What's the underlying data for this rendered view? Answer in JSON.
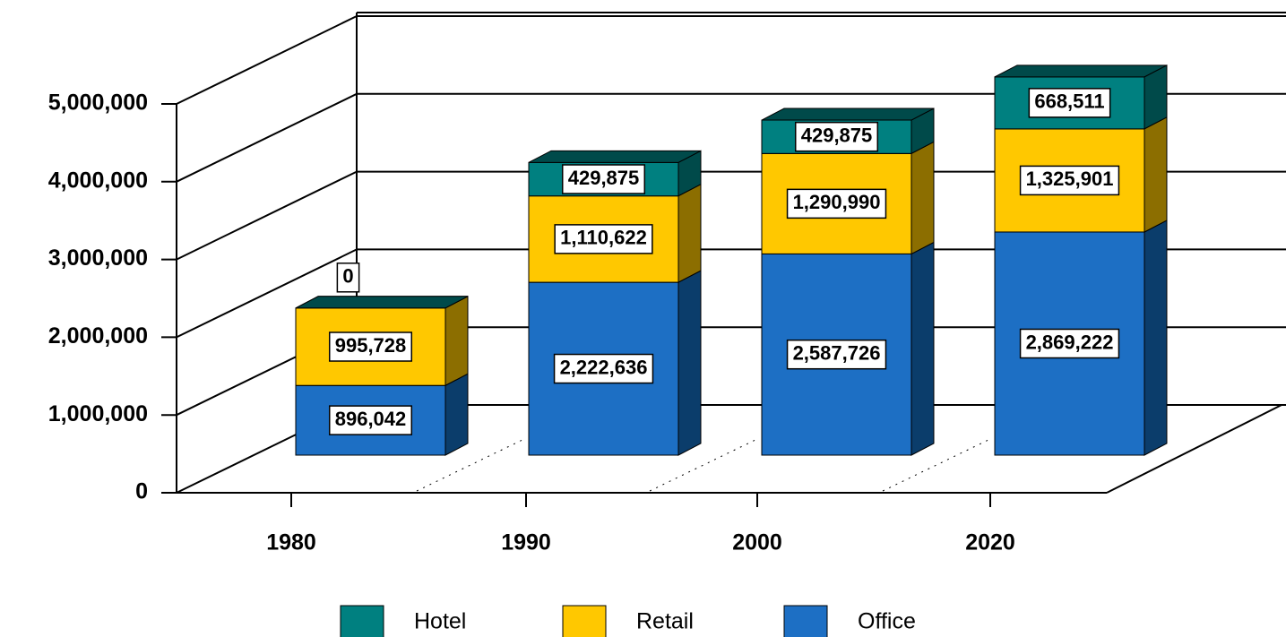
{
  "chart_data": {
    "type": "bar3d_stacked",
    "categories": [
      "1980",
      "1990",
      "2000",
      "2020"
    ],
    "series": [
      {
        "name": "Office",
        "color": "#1d6fc4",
        "side": "#0b3d6b",
        "values": [
          896042,
          2222636,
          2587726,
          2869222
        ],
        "value_labels": [
          "896,042",
          "2,222,636",
          "2,587,726",
          "2,869,222"
        ]
      },
      {
        "name": "Retail",
        "color": "#ffc800",
        "side": "#8c6e00",
        "values": [
          995728,
          1110622,
          1290990,
          1325901
        ],
        "value_labels": [
          "995,728",
          "1,110,622",
          "1,290,990",
          "1,325,901"
        ]
      },
      {
        "name": "Hotel",
        "color": "#008080",
        "side": "#004a4a",
        "values": [
          0,
          429875,
          429875,
          668511
        ],
        "value_labels": [
          "0",
          "429,875",
          "429,875",
          "668,511"
        ]
      }
    ],
    "legend_order": [
      "Hotel",
      "Retail",
      "Office"
    ],
    "ylim": [
      0,
      5000000
    ],
    "yticks": [
      0,
      {
        "value": 1000000,
        "label": "1,000,000"
      },
      {
        "value": 2000000,
        "label": "2,000,000"
      },
      {
        "value": 3000000,
        "label": "3,000,000"
      },
      {
        "value": 4000000,
        "label": "4,000,000"
      },
      {
        "value": 5000000,
        "label": "5,000,000"
      }
    ],
    "grid": true
  }
}
